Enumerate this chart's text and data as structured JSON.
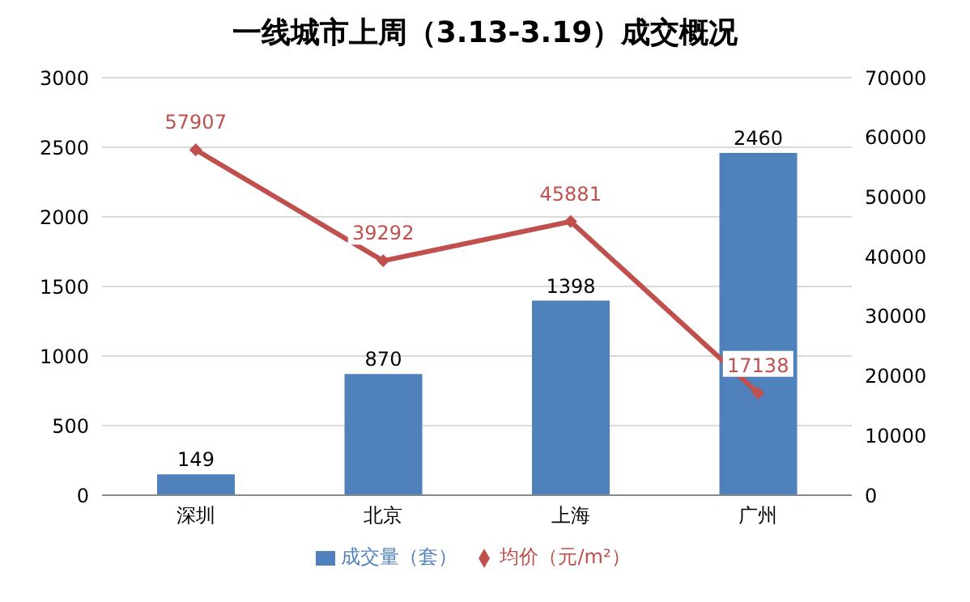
{
  "chart_data": {
    "type": "bar",
    "title": "一线城市上周（3.13-3.19）成交概况",
    "categories": [
      "深圳",
      "北京",
      "上海",
      "广州"
    ],
    "series": [
      {
        "name": "成交量（套）",
        "color": "#4f81bd",
        "values": [
          149,
          870,
          1398,
          2460
        ]
      },
      {
        "name": "均价（元/m²）",
        "type": "line",
        "axis": "y2",
        "color": "#c0504d",
        "marker": "diamond",
        "values": [
          57907,
          39292,
          45881,
          17138
        ]
      }
    ],
    "ylim": [
      0,
      3000
    ],
    "yticks": [
      0,
      500,
      1000,
      1500,
      2000,
      2500,
      3000
    ],
    "y2lim": [
      0,
      70000
    ],
    "y2ticks": [
      0,
      10000,
      20000,
      30000,
      40000,
      50000,
      60000,
      70000
    ],
    "grid": "y",
    "legend": "bottom",
    "data_labels": true
  }
}
